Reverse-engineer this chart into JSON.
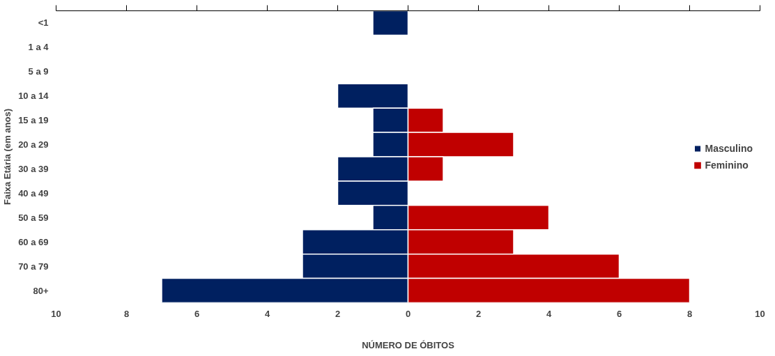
{
  "chart_data": {
    "type": "bar",
    "orientation": "horizontal",
    "xlabel": "NÚMERO DE ÓBITOS",
    "ylabel": "Faixa Etária (em anos)",
    "categories": [
      "<1",
      "1 a 4",
      "5 a 9",
      "10 a 14",
      "15 a 19",
      "20 a 29",
      "30 a 39",
      "40 a 49",
      "50 a 59",
      "60 a 69",
      "70 a 79",
      "80+"
    ],
    "series": [
      {
        "name": "Masculino",
        "color": "#002060",
        "values": [
          -1,
          0,
          0,
          -2,
          -1,
          -1,
          -2,
          -2,
          -1,
          -3,
          -3,
          -7
        ]
      },
      {
        "name": "Feminino",
        "color": "#c00000",
        "values": [
          0,
          0,
          0,
          0,
          1,
          3,
          1,
          0,
          4,
          3,
          6,
          8
        ]
      }
    ],
    "xlim": [
      -10,
      10
    ],
    "xticks": [
      {
        "value": -10,
        "label": "10"
      },
      {
        "value": -8,
        "label": "8"
      },
      {
        "value": -6,
        "label": "6"
      },
      {
        "value": -4,
        "label": "4"
      },
      {
        "value": -2,
        "label": "2"
      },
      0,
      2,
      4,
      6,
      8,
      10
    ],
    "stacked": true,
    "grid": false,
    "legend": "right"
  }
}
